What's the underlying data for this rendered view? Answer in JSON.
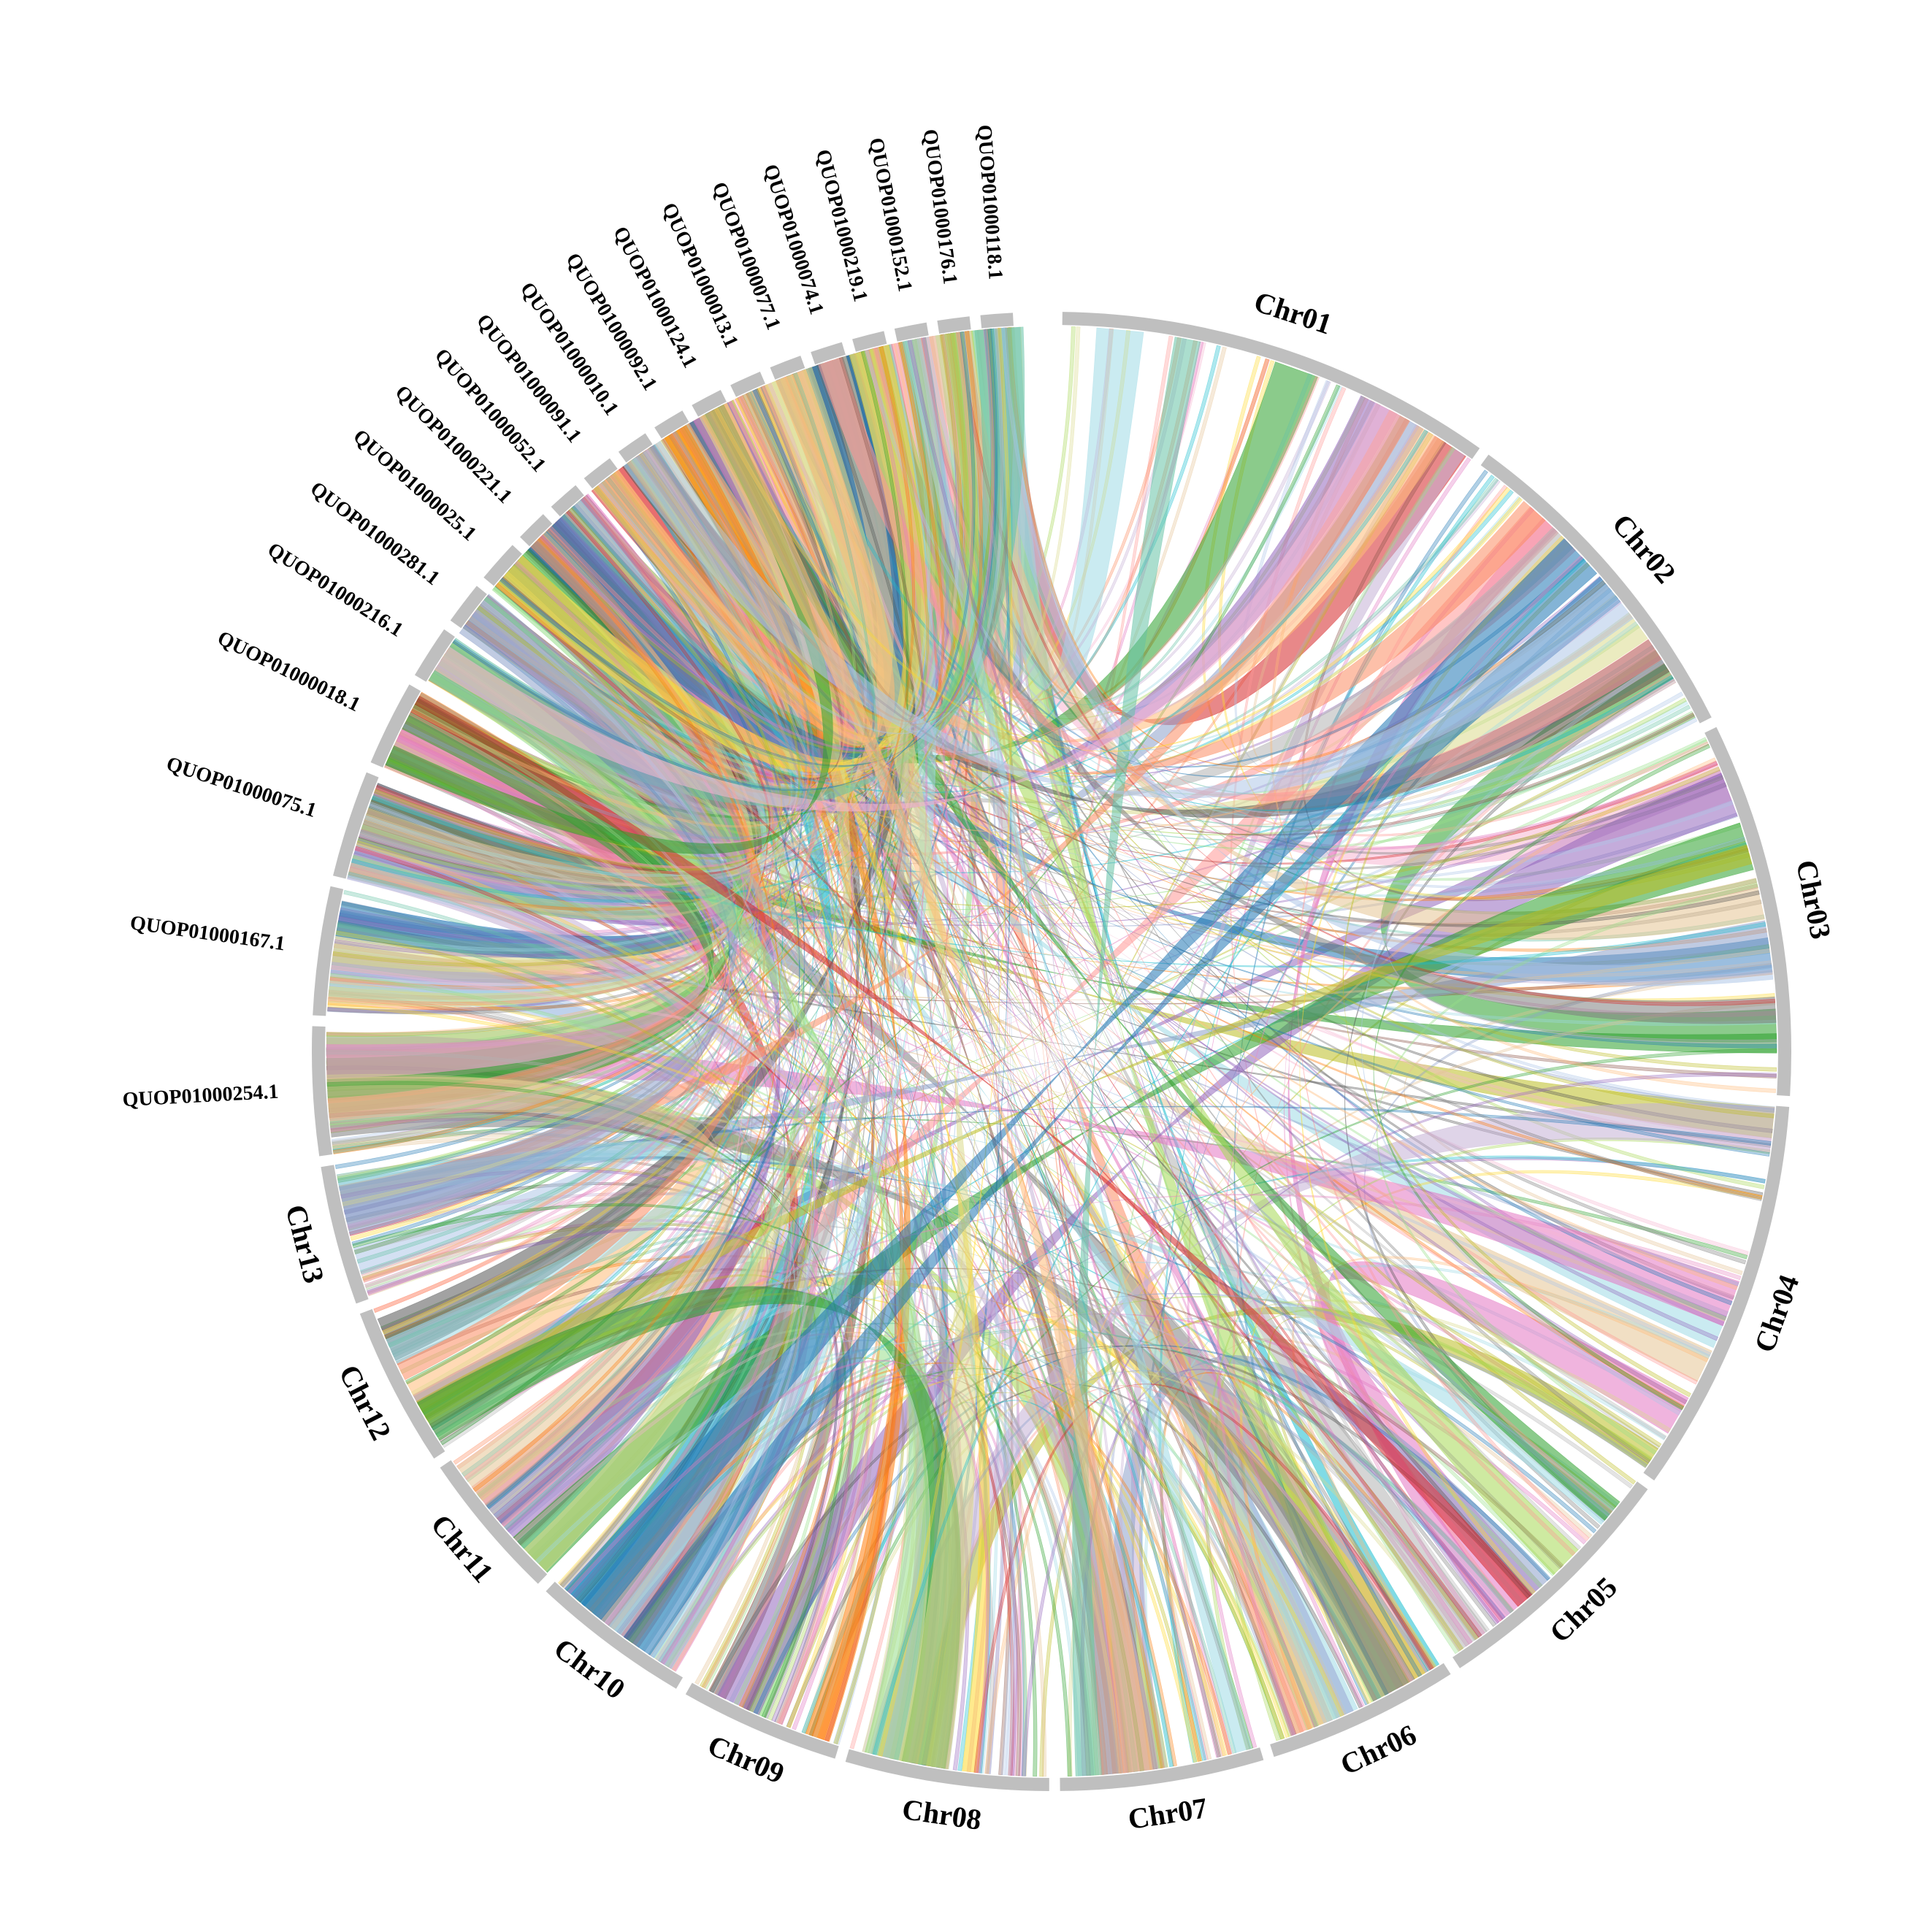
{
  "diagram": {
    "type": "circos",
    "track_color": "#bfbfbf",
    "segments": [
      {
        "label": "Chr01"
      },
      {
        "label": "Chr02"
      },
      {
        "label": "Chr03"
      },
      {
        "label": "Chr04"
      },
      {
        "label": "Chr05"
      },
      {
        "label": "Chr06"
      },
      {
        "label": "Chr07"
      },
      {
        "label": "Chr08"
      },
      {
        "label": "Chr09"
      },
      {
        "label": "Chr10"
      },
      {
        "label": "Chr11"
      },
      {
        "label": "Chr12"
      },
      {
        "label": "Chr13"
      },
      {
        "label": "QUOP01000254.1"
      },
      {
        "label": "QUOP01000167.1"
      },
      {
        "label": "QUOP01000075.1"
      },
      {
        "label": "QUOP01000018.1"
      },
      {
        "label": "QUOP01000216.1"
      },
      {
        "label": "QUOP01000281.1"
      },
      {
        "label": "QUOP01000025.1"
      },
      {
        "label": "QUOP01000221.1"
      },
      {
        "label": "QUOP01000052.1"
      },
      {
        "label": "QUOP01000091.1"
      },
      {
        "label": "QUOP01000010.1"
      },
      {
        "label": "QUOP01000092.1"
      },
      {
        "label": "QUOP01000124.1"
      },
      {
        "label": "QUOP01000013.1"
      },
      {
        "label": "QUOP01000077.1"
      },
      {
        "label": "QUOP01000074.1"
      },
      {
        "label": "QUOP01000219.1"
      },
      {
        "label": "QUOP01000152.1"
      },
      {
        "label": "QUOP01000176.1"
      },
      {
        "label": "QUOP01000118.1"
      }
    ],
    "link_colors": [
      "#e377c2",
      "#f7b6d2",
      "#98df8a",
      "#2ca02c",
      "#aec7e8",
      "#1f77b4",
      "#ff9896",
      "#d62728",
      "#9467bd",
      "#c5b0d5",
      "#8c564b",
      "#7f7f7f",
      "#17becf",
      "#9edae5",
      "#ffbb78",
      "#ff7f0e",
      "#bcbd22",
      "#dbdb8d",
      "#555555",
      "#66c2a5",
      "#fc8d62",
      "#8da0cb",
      "#e78ac3",
      "#a6d854",
      "#ffd92f",
      "#e5c494",
      "#b3b3b3"
    ]
  }
}
